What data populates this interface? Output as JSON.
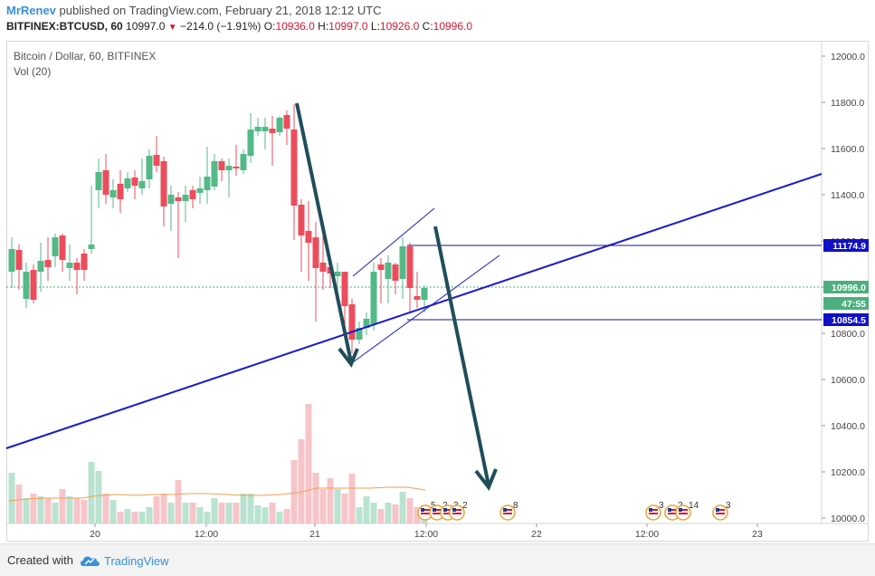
{
  "header": {
    "author": "MrRenev",
    "published_text": " published on TradingView.com, February 21, 2018 12:12 UTC",
    "symbol": "BITFINEX:BTCUSD, 60",
    "last": "10997.0",
    "change": "−214.0 (−1.91%)",
    "o_label": "O:",
    "o_value": "10936.0",
    "h_label": "H:",
    "h_value": "10997.0",
    "l_label": "L:",
    "l_value": "10926.0",
    "c_label": "C:",
    "c_value": "10996.0"
  },
  "legend": {
    "title": "Bitcoin / Dollar, 60, BITFINEX",
    "volume": "Vol (20)"
  },
  "price_axis": {
    "ticks": [
      "12000.0",
      "11800.0",
      "11600.0",
      "11400.0",
      "11200.0",
      "11000.0",
      "10800.0",
      "10600.0",
      "10400.0",
      "10200.0",
      "10000.0"
    ],
    "labels": [
      {
        "text": "11174.9",
        "bg": "#1010c8"
      },
      {
        "text": "10996.0",
        "bg": "#4caf7d"
      },
      {
        "text": "47:55",
        "bg": "#4caf7d"
      },
      {
        "text": "10854.5",
        "bg": "#1010c8"
      }
    ]
  },
  "time_axis": {
    "ticks": [
      "20",
      "12:00",
      "21",
      "12:00",
      "22",
      "12:00",
      "23"
    ]
  },
  "event_badges": [
    {
      "count": "5"
    },
    {
      "count": "2"
    },
    {
      "count": "3"
    },
    {
      "count": "2"
    },
    {
      "count": "8"
    },
    {
      "count": "3"
    },
    {
      "count": "2"
    },
    {
      "count": "14"
    },
    {
      "count": "3"
    }
  ],
  "footer": {
    "created_with": "Created with",
    "brand": "TradingView"
  },
  "colors": {
    "up": "#53b987",
    "down": "#eb4d5c",
    "trendline": "#1a1acc",
    "arrow": "#1f4e5a",
    "accent": "#3a8fd6"
  }
}
